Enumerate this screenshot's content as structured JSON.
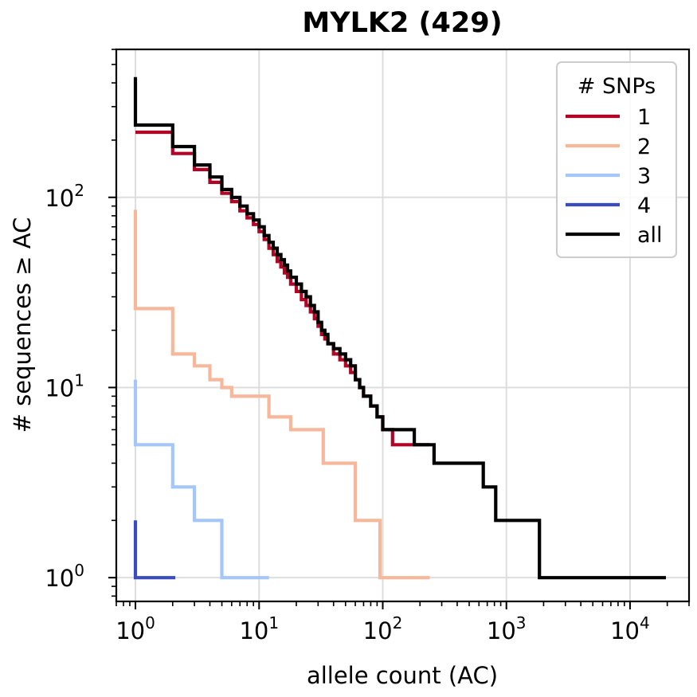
{
  "chart_data": {
    "type": "line",
    "title": "MYLK2 (429)",
    "xlabel": "allele count (AC)",
    "ylabel": "# sequences ≥ AC",
    "xscale": "log",
    "yscale": "log",
    "xlim": [
      0.7,
      30000
    ],
    "ylim": [
      0.75,
      600
    ],
    "grid": true,
    "legend": {
      "title": "# SNPs",
      "placement": "top-right"
    },
    "x_ticks": [
      {
        "base": "10",
        "exp": "0",
        "value": 1
      },
      {
        "base": "10",
        "exp": "1",
        "value": 10
      },
      {
        "base": "10",
        "exp": "2",
        "value": 100
      },
      {
        "base": "10",
        "exp": "3",
        "value": 1000
      },
      {
        "base": "10",
        "exp": "4",
        "value": 10000
      }
    ],
    "y_ticks": [
      {
        "base": "10",
        "exp": "0",
        "value": 1
      },
      {
        "base": "10",
        "exp": "1",
        "value": 10
      },
      {
        "base": "10",
        "exp": "2",
        "value": 100
      }
    ],
    "series": [
      {
        "name": "1",
        "color": "#b40426",
        "x": [
          1,
          2,
          3,
          4,
          5,
          6,
          7,
          8,
          9,
          10,
          11,
          12,
          13,
          14,
          15,
          16,
          17,
          18,
          20,
          22,
          24,
          26,
          28,
          30,
          32,
          34,
          36,
          40,
          45,
          50,
          55,
          60,
          65,
          70,
          80,
          90,
          100,
          120,
          240
        ],
        "y": [
          220,
          170,
          140,
          120,
          105,
          95,
          85,
          78,
          72,
          66,
          60,
          54,
          50,
          46,
          43,
          40,
          38,
          35,
          32,
          29,
          27,
          25,
          23,
          21,
          19,
          18,
          17,
          15,
          14,
          13,
          12,
          11,
          10,
          9,
          8,
          7,
          6,
          5,
          5
        ]
      },
      {
        "name": "2",
        "color": "#f7b79b",
        "x": [
          1,
          2,
          3,
          4,
          5,
          6,
          12,
          18,
          33,
          60,
          95,
          240
        ],
        "y": [
          26,
          15,
          13,
          11,
          10,
          9,
          7,
          6,
          4,
          2,
          1,
          1
        ]
      },
      {
        "name": "3",
        "color": "#a5c6f9",
        "x": [
          1,
          2,
          3,
          5,
          12
        ],
        "y": [
          5,
          3,
          2,
          1,
          1
        ]
      },
      {
        "name": "4",
        "color": "#3b4cc0",
        "x": [
          1,
          2.1
        ],
        "y": [
          1,
          1
        ]
      },
      {
        "name": "all",
        "color": "#000000",
        "x": [
          1,
          2,
          3,
          4,
          5,
          6,
          7,
          8,
          9,
          10,
          11,
          12,
          13,
          14,
          15,
          16,
          17,
          18,
          20,
          22,
          24,
          26,
          28,
          30,
          32,
          34,
          36,
          40,
          45,
          50,
          55,
          60,
          65,
          70,
          80,
          90,
          100,
          180,
          260,
          650,
          820,
          1850,
          19500
        ],
        "y": [
          240,
          185,
          148,
          128,
          110,
          100,
          90,
          82,
          76,
          70,
          63,
          58,
          54,
          50,
          47,
          44,
          41,
          38,
          35,
          32,
          30,
          27,
          25,
          22,
          20,
          19,
          17,
          16,
          15,
          14,
          13,
          11,
          10,
          9,
          8,
          7,
          6,
          5,
          4,
          3,
          2,
          1,
          1
        ]
      }
    ],
    "vertical_starts": [
      {
        "series": "1",
        "x": 1,
        "y_top": 220
      },
      {
        "series": "2",
        "x": 1,
        "y_top": 86
      },
      {
        "series": "3",
        "x": 1,
        "y_top": 11
      },
      {
        "series": "4",
        "x": 1,
        "y_top": 2
      },
      {
        "series": "all",
        "x": 1,
        "y_top": 429
      }
    ]
  }
}
